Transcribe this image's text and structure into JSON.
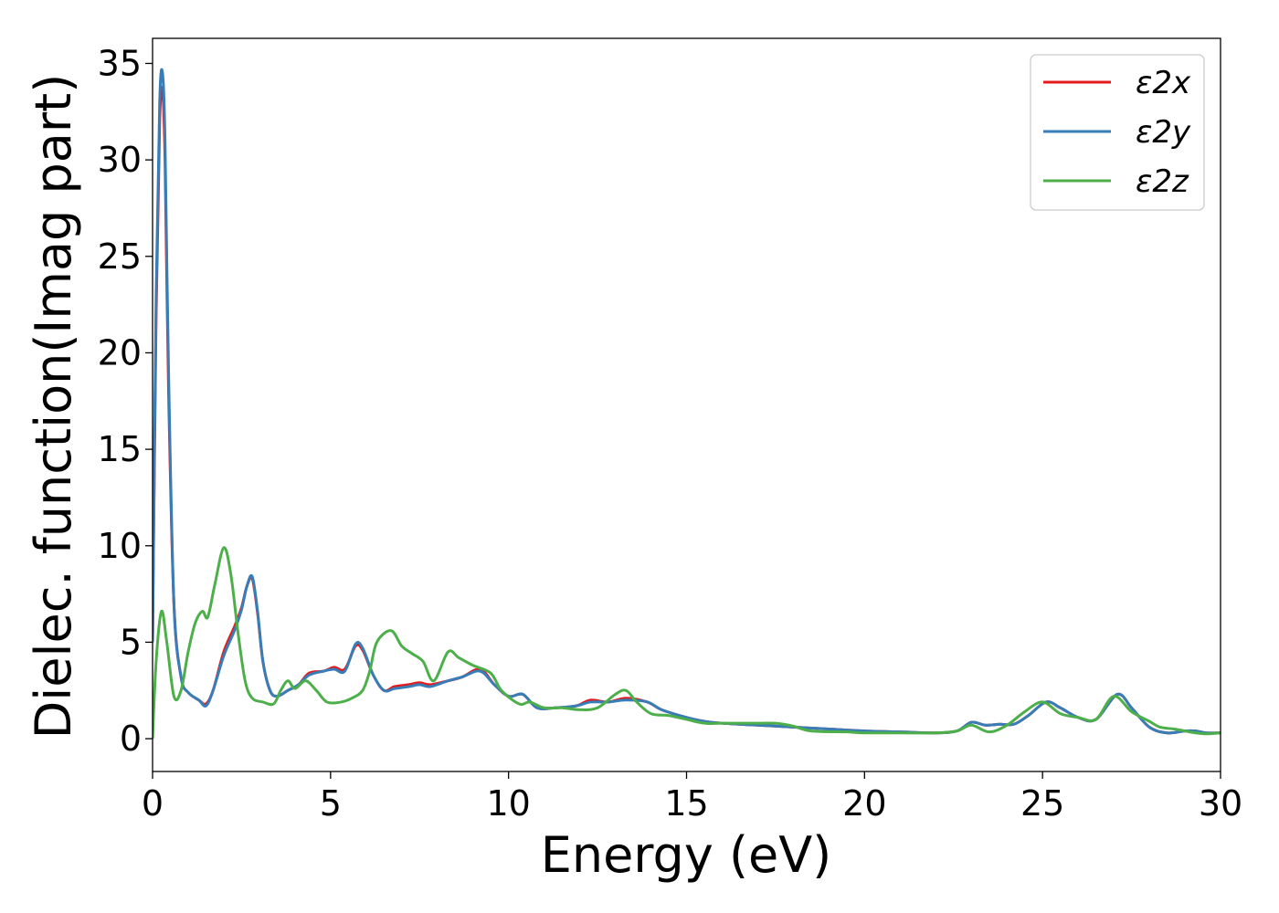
{
  "chart_data": {
    "type": "line",
    "title": "",
    "xlabel": "Energy (eV)",
    "ylabel": "Dielec. function(Imag part)",
    "xlim": [
      0,
      30
    ],
    "ylim": [
      -1.7,
      36.3
    ],
    "xticks": [
      0,
      5,
      10,
      15,
      20,
      25,
      30
    ],
    "yticks": [
      0,
      5,
      10,
      15,
      20,
      25,
      30,
      35
    ],
    "grid": false,
    "legend_position": "top-right",
    "series": [
      {
        "name": "ε2x",
        "color": "#e41a1c",
        "points": [
          [
            0,
            5
          ],
          [
            0.1,
            22
          ],
          [
            0.2,
            32
          ],
          [
            0.28,
            33.6
          ],
          [
            0.35,
            30
          ],
          [
            0.45,
            18
          ],
          [
            0.6,
            7
          ],
          [
            0.8,
            3.2
          ],
          [
            1.0,
            2.4
          ],
          [
            1.3,
            2.0
          ],
          [
            1.5,
            1.8
          ],
          [
            1.7,
            2.5
          ],
          [
            2.0,
            4.5
          ],
          [
            2.3,
            5.8
          ],
          [
            2.5,
            6.8
          ],
          [
            2.65,
            7.9
          ],
          [
            2.8,
            8.3
          ],
          [
            2.95,
            6.5
          ],
          [
            3.1,
            4.0
          ],
          [
            3.3,
            2.5
          ],
          [
            3.5,
            2.2
          ],
          [
            3.8,
            2.5
          ],
          [
            4.1,
            2.8
          ],
          [
            4.4,
            3.4
          ],
          [
            4.8,
            3.5
          ],
          [
            5.1,
            3.7
          ],
          [
            5.4,
            3.6
          ],
          [
            5.7,
            4.8
          ],
          [
            5.9,
            4.6
          ],
          [
            6.2,
            3.3
          ],
          [
            6.5,
            2.5
          ],
          [
            6.8,
            2.7
          ],
          [
            7.2,
            2.8
          ],
          [
            7.5,
            2.9
          ],
          [
            7.8,
            2.8
          ],
          [
            8.3,
            3.0
          ],
          [
            8.7,
            3.2
          ],
          [
            9.2,
            3.6
          ],
          [
            9.6,
            2.8
          ],
          [
            10.0,
            2.2
          ],
          [
            10.4,
            2.3
          ],
          [
            10.8,
            1.6
          ],
          [
            11.3,
            1.6
          ],
          [
            11.9,
            1.7
          ],
          [
            12.3,
            2.0
          ],
          [
            12.8,
            1.9
          ],
          [
            13.3,
            2.1
          ],
          [
            13.9,
            1.9
          ],
          [
            14.3,
            1.5
          ],
          [
            15.0,
            1.1
          ],
          [
            15.5,
            0.9
          ],
          [
            16.0,
            0.8
          ],
          [
            17.0,
            0.7
          ],
          [
            18.0,
            0.6
          ],
          [
            19.0,
            0.5
          ],
          [
            20.0,
            0.4
          ],
          [
            21.0,
            0.35
          ],
          [
            22.0,
            0.3
          ],
          [
            22.6,
            0.4
          ],
          [
            23.0,
            0.85
          ],
          [
            23.4,
            0.7
          ],
          [
            23.8,
            0.75
          ],
          [
            24.2,
            0.75
          ],
          [
            24.6,
            1.2
          ],
          [
            25.1,
            1.9
          ],
          [
            25.5,
            1.6
          ],
          [
            26.0,
            1.1
          ],
          [
            26.5,
            1.0
          ],
          [
            27.1,
            2.3
          ],
          [
            27.5,
            1.6
          ],
          [
            28.0,
            0.6
          ],
          [
            28.5,
            0.3
          ],
          [
            29.0,
            0.4
          ],
          [
            29.3,
            0.4
          ],
          [
            29.6,
            0.3
          ],
          [
            30.0,
            0.3
          ]
        ]
      },
      {
        "name": "ε2y",
        "color": "#377eb8",
        "points": [
          [
            0,
            5
          ],
          [
            0.1,
            23
          ],
          [
            0.2,
            33
          ],
          [
            0.28,
            34.5
          ],
          [
            0.35,
            31
          ],
          [
            0.45,
            19
          ],
          [
            0.6,
            7
          ],
          [
            0.8,
            3.2
          ],
          [
            1.0,
            2.4
          ],
          [
            1.3,
            2.0
          ],
          [
            1.5,
            1.7
          ],
          [
            1.7,
            2.5
          ],
          [
            2.0,
            4.3
          ],
          [
            2.3,
            5.6
          ],
          [
            2.5,
            6.7
          ],
          [
            2.65,
            7.9
          ],
          [
            2.8,
            8.4
          ],
          [
            2.95,
            6.6
          ],
          [
            3.1,
            4.0
          ],
          [
            3.3,
            2.5
          ],
          [
            3.5,
            2.2
          ],
          [
            3.8,
            2.5
          ],
          [
            4.1,
            2.8
          ],
          [
            4.4,
            3.3
          ],
          [
            4.8,
            3.5
          ],
          [
            5.1,
            3.6
          ],
          [
            5.4,
            3.5
          ],
          [
            5.7,
            4.9
          ],
          [
            5.9,
            4.7
          ],
          [
            6.2,
            3.3
          ],
          [
            6.5,
            2.5
          ],
          [
            6.8,
            2.6
          ],
          [
            7.2,
            2.7
          ],
          [
            7.5,
            2.8
          ],
          [
            7.8,
            2.7
          ],
          [
            8.3,
            3.0
          ],
          [
            8.7,
            3.2
          ],
          [
            9.2,
            3.5
          ],
          [
            9.6,
            2.8
          ],
          [
            10.0,
            2.2
          ],
          [
            10.4,
            2.3
          ],
          [
            10.8,
            1.6
          ],
          [
            11.3,
            1.6
          ],
          [
            11.9,
            1.7
          ],
          [
            12.3,
            1.9
          ],
          [
            12.8,
            1.9
          ],
          [
            13.3,
            2.0
          ],
          [
            13.9,
            1.9
          ],
          [
            14.3,
            1.5
          ],
          [
            15.0,
            1.1
          ],
          [
            15.5,
            0.9
          ],
          [
            16.0,
            0.8
          ],
          [
            17.0,
            0.7
          ],
          [
            18.0,
            0.6
          ],
          [
            19.0,
            0.5
          ],
          [
            20.0,
            0.4
          ],
          [
            21.0,
            0.35
          ],
          [
            22.0,
            0.3
          ],
          [
            22.6,
            0.4
          ],
          [
            23.0,
            0.85
          ],
          [
            23.4,
            0.7
          ],
          [
            23.8,
            0.75
          ],
          [
            24.2,
            0.75
          ],
          [
            24.6,
            1.2
          ],
          [
            25.1,
            1.9
          ],
          [
            25.5,
            1.6
          ],
          [
            26.0,
            1.1
          ],
          [
            26.5,
            1.0
          ],
          [
            27.1,
            2.3
          ],
          [
            27.5,
            1.6
          ],
          [
            28.0,
            0.6
          ],
          [
            28.5,
            0.3
          ],
          [
            29.0,
            0.4
          ],
          [
            29.3,
            0.4
          ],
          [
            29.6,
            0.3
          ],
          [
            30.0,
            0.3
          ]
        ]
      },
      {
        "name": "ε2z",
        "color": "#4daf4a",
        "points": [
          [
            0,
            0
          ],
          [
            0.1,
            4
          ],
          [
            0.25,
            6.6
          ],
          [
            0.4,
            5.0
          ],
          [
            0.6,
            2.2
          ],
          [
            0.8,
            2.5
          ],
          [
            1.0,
            4.5
          ],
          [
            1.2,
            6.0
          ],
          [
            1.4,
            6.6
          ],
          [
            1.55,
            6.3
          ],
          [
            1.75,
            8.0
          ],
          [
            2.0,
            9.9
          ],
          [
            2.2,
            8.5
          ],
          [
            2.4,
            5.5
          ],
          [
            2.6,
            3.0
          ],
          [
            2.8,
            2.1
          ],
          [
            3.1,
            1.9
          ],
          [
            3.4,
            1.8
          ],
          [
            3.6,
            2.5
          ],
          [
            3.8,
            3.0
          ],
          [
            4.0,
            2.6
          ],
          [
            4.3,
            3.0
          ],
          [
            4.6,
            2.5
          ],
          [
            4.9,
            1.9
          ],
          [
            5.3,
            1.9
          ],
          [
            5.6,
            2.1
          ],
          [
            5.9,
            2.5
          ],
          [
            6.1,
            3.5
          ],
          [
            6.3,
            5.0
          ],
          [
            6.7,
            5.6
          ],
          [
            7.0,
            4.8
          ],
          [
            7.3,
            4.4
          ],
          [
            7.6,
            4.0
          ],
          [
            7.9,
            3.0
          ],
          [
            8.3,
            4.5
          ],
          [
            8.6,
            4.2
          ],
          [
            9.0,
            3.8
          ],
          [
            9.5,
            3.4
          ],
          [
            9.8,
            2.5
          ],
          [
            10.3,
            1.8
          ],
          [
            10.6,
            1.9
          ],
          [
            11.0,
            1.6
          ],
          [
            11.5,
            1.6
          ],
          [
            12.0,
            1.5
          ],
          [
            12.5,
            1.6
          ],
          [
            13.0,
            2.3
          ],
          [
            13.3,
            2.5
          ],
          [
            13.6,
            1.9
          ],
          [
            14.0,
            1.3
          ],
          [
            14.5,
            1.2
          ],
          [
            15.0,
            1.0
          ],
          [
            15.5,
            0.8
          ],
          [
            16.0,
            0.8
          ],
          [
            17.0,
            0.8
          ],
          [
            17.5,
            0.8
          ],
          [
            18.0,
            0.65
          ],
          [
            18.5,
            0.4
          ],
          [
            19.5,
            0.35
          ],
          [
            20.0,
            0.3
          ],
          [
            21.0,
            0.3
          ],
          [
            22.0,
            0.3
          ],
          [
            22.6,
            0.4
          ],
          [
            23.0,
            0.7
          ],
          [
            23.5,
            0.35
          ],
          [
            24.0,
            0.7
          ],
          [
            24.5,
            1.4
          ],
          [
            25.0,
            1.9
          ],
          [
            25.5,
            1.3
          ],
          [
            26.0,
            1.1
          ],
          [
            26.5,
            1.0
          ],
          [
            27.0,
            2.2
          ],
          [
            27.5,
            1.4
          ],
          [
            28.0,
            0.9
          ],
          [
            28.3,
            0.6
          ],
          [
            28.7,
            0.5
          ],
          [
            29.0,
            0.4
          ],
          [
            29.3,
            0.3
          ],
          [
            29.6,
            0.25
          ],
          [
            30.0,
            0.3
          ]
        ]
      }
    ]
  }
}
